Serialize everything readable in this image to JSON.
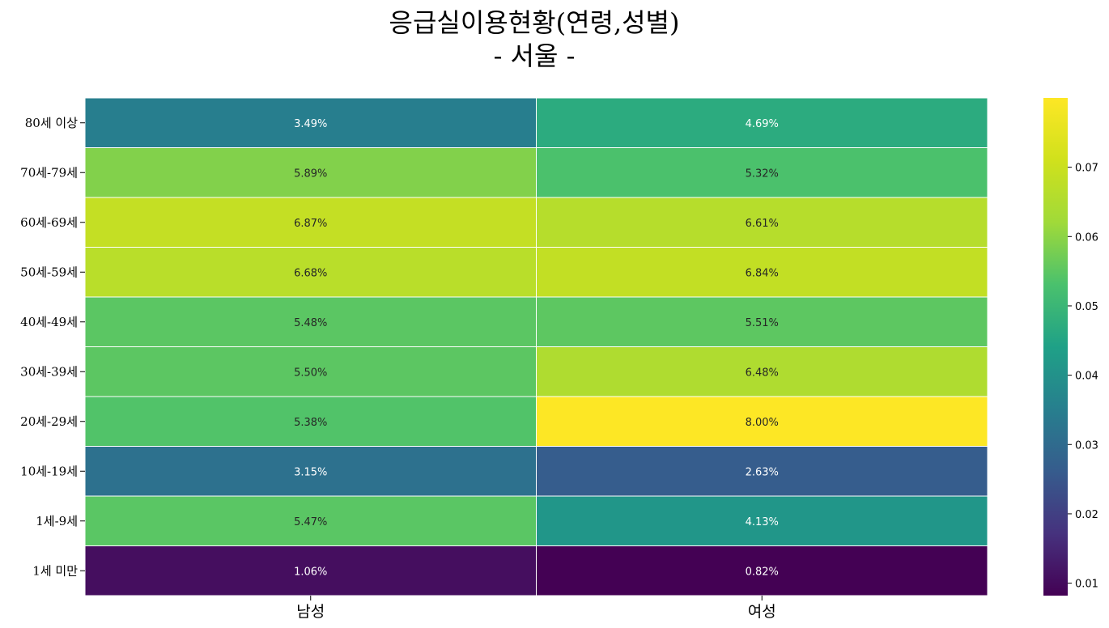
{
  "chart_data": {
    "type": "heatmap",
    "title_line1": "응급실이용현황(연령,성별)",
    "title_line2": "- 서울 -",
    "x_categories": [
      "남성",
      "여성"
    ],
    "y_categories": [
      "80세 이상",
      "70세-79세",
      "60세-69세",
      "50세-59세",
      "40세-49세",
      "30세-39세",
      "20세-29세",
      "10세-19세",
      "1세-9세",
      "1세 미만"
    ],
    "values": [
      [
        0.0349,
        0.0469
      ],
      [
        0.0589,
        0.0532
      ],
      [
        0.0687,
        0.0661
      ],
      [
        0.0668,
        0.0684
      ],
      [
        0.0548,
        0.0551
      ],
      [
        0.055,
        0.0648
      ],
      [
        0.0538,
        0.08
      ],
      [
        0.0315,
        0.0263
      ],
      [
        0.0547,
        0.0413
      ],
      [
        0.0106,
        0.0082
      ]
    ],
    "annotations": [
      [
        "3.49%",
        "4.69%"
      ],
      [
        "5.89%",
        "5.32%"
      ],
      [
        "6.87%",
        "6.61%"
      ],
      [
        "6.68%",
        "6.84%"
      ],
      [
        "5.48%",
        "5.51%"
      ],
      [
        "5.50%",
        "6.48%"
      ],
      [
        "5.38%",
        "8.00%"
      ],
      [
        "3.15%",
        "2.63%"
      ],
      [
        "5.47%",
        "4.13%"
      ],
      [
        "1.06%",
        "0.82%"
      ]
    ],
    "colormap": "viridis",
    "vmin": 0.0082,
    "vmax": 0.08,
    "colorbar_ticks": [
      0.01,
      0.02,
      0.03,
      0.04,
      0.05,
      0.06,
      0.07
    ],
    "colorbar_tick_labels": [
      "0.01",
      "0.02",
      "0.03",
      "0.04",
      "0.05",
      "0.06",
      "0.07"
    ],
    "cell_gridline_color": "#ffffff"
  }
}
